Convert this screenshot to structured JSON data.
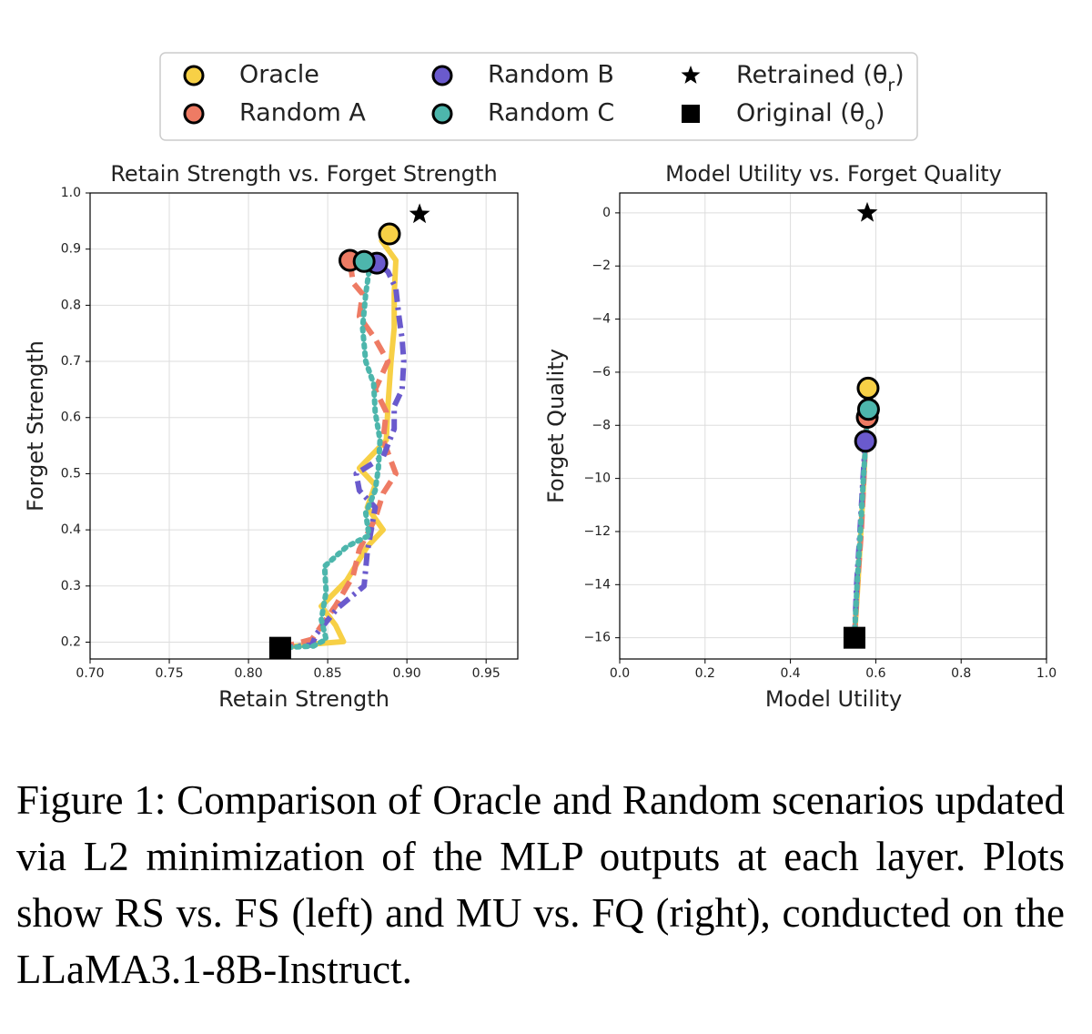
{
  "legend": {
    "entries": [
      {
        "label": "Oracle",
        "marker": "circle",
        "color": "#F7D046"
      },
      {
        "label": "Random A",
        "marker": "circle",
        "color": "#EE7B64"
      },
      {
        "label": "Random B",
        "marker": "circle",
        "color": "#6A5ACD"
      },
      {
        "label": "Random C",
        "marker": "circle",
        "color": "#4DB6AC"
      },
      {
        "label": "Retrained (θr)",
        "marker": "star",
        "color": "#000000"
      },
      {
        "label": "Original (θo)",
        "marker": "square",
        "color": "#000000"
      }
    ]
  },
  "chart_data": [
    {
      "type": "line",
      "title": "Retain Strength vs. Forget Strength",
      "xlabel": "Retain Strength",
      "ylabel": "Forget Strength",
      "xlim": [
        0.7,
        0.97
      ],
      "ylim": [
        0.17,
        1.0
      ],
      "xticks": [
        "0.70",
        "0.75",
        "0.80",
        "0.85",
        "0.90",
        "0.95"
      ],
      "yticks": [
        "0.2",
        "0.3",
        "0.4",
        "0.5",
        "0.6",
        "0.7",
        "0.8",
        "0.9",
        "1.0"
      ],
      "grid": true,
      "series": [
        {
          "name": "Oracle",
          "color": "#F7D046",
          "dash": "solid",
          "points": [
            [
              0.82,
              0.19
            ],
            [
              0.843,
              0.197
            ],
            [
              0.86,
              0.201
            ],
            [
              0.855,
              0.23
            ],
            [
              0.846,
              0.264
            ],
            [
              0.862,
              0.31
            ],
            [
              0.875,
              0.37
            ],
            [
              0.885,
              0.4
            ],
            [
              0.875,
              0.44
            ],
            [
              0.88,
              0.48
            ],
            [
              0.87,
              0.51
            ],
            [
              0.887,
              0.56
            ],
            [
              0.888,
              0.62
            ],
            [
              0.89,
              0.7
            ],
            [
              0.892,
              0.76
            ],
            [
              0.892,
              0.82
            ],
            [
              0.893,
              0.88
            ],
            [
              0.884,
              0.915
            ],
            [
              0.889,
              0.927
            ]
          ]
        },
        {
          "name": "Random A",
          "color": "#EE7B64",
          "dash": "dash",
          "points": [
            [
              0.82,
              0.19
            ],
            [
              0.84,
              0.205
            ],
            [
              0.855,
              0.265
            ],
            [
              0.866,
              0.318
            ],
            [
              0.87,
              0.365
            ],
            [
              0.88,
              0.42
            ],
            [
              0.885,
              0.465
            ],
            [
              0.893,
              0.5
            ],
            [
              0.885,
              0.56
            ],
            [
              0.887,
              0.61
            ],
            [
              0.88,
              0.65
            ],
            [
              0.888,
              0.7
            ],
            [
              0.88,
              0.74
            ],
            [
              0.87,
              0.78
            ],
            [
              0.872,
              0.82
            ],
            [
              0.866,
              0.84
            ],
            [
              0.864,
              0.88
            ]
          ]
        },
        {
          "name": "Random B",
          "color": "#6A5ACD",
          "dash": "dashdot",
          "points": [
            [
              0.82,
              0.19
            ],
            [
              0.84,
              0.195
            ],
            [
              0.843,
              0.215
            ],
            [
              0.856,
              0.26
            ],
            [
              0.873,
              0.3
            ],
            [
              0.875,
              0.36
            ],
            [
              0.88,
              0.44
            ],
            [
              0.87,
              0.47
            ],
            [
              0.868,
              0.5
            ],
            [
              0.885,
              0.53
            ],
            [
              0.892,
              0.58
            ],
            [
              0.892,
              0.62
            ],
            [
              0.897,
              0.65
            ],
            [
              0.898,
              0.7
            ],
            [
              0.897,
              0.74
            ],
            [
              0.895,
              0.78
            ],
            [
              0.893,
              0.83
            ],
            [
              0.888,
              0.86
            ],
            [
              0.881,
              0.875
            ]
          ]
        },
        {
          "name": "Random C",
          "color": "#4DB6AC",
          "dash": "dot",
          "points": [
            [
              0.82,
              0.19
            ],
            [
              0.841,
              0.193
            ],
            [
              0.849,
              0.205
            ],
            [
              0.846,
              0.24
            ],
            [
              0.849,
              0.29
            ],
            [
              0.848,
              0.335
            ],
            [
              0.862,
              0.37
            ],
            [
              0.876,
              0.39
            ],
            [
              0.874,
              0.43
            ],
            [
              0.88,
              0.47
            ],
            [
              0.882,
              0.51
            ],
            [
              0.883,
              0.56
            ],
            [
              0.88,
              0.61
            ],
            [
              0.879,
              0.66
            ],
            [
              0.874,
              0.7
            ],
            [
              0.872,
              0.76
            ],
            [
              0.874,
              0.82
            ],
            [
              0.876,
              0.86
            ],
            [
              0.873,
              0.878
            ]
          ]
        }
      ],
      "endpoints": [
        {
          "name": "Oracle",
          "x": 0.889,
          "y": 0.927,
          "color": "#F7D046"
        },
        {
          "name": "Random A",
          "x": 0.864,
          "y": 0.88,
          "color": "#EE7B64"
        },
        {
          "name": "Random B",
          "x": 0.881,
          "y": 0.875,
          "color": "#6A5ACD"
        },
        {
          "name": "Random C",
          "x": 0.873,
          "y": 0.878,
          "color": "#4DB6AC"
        }
      ],
      "retrained": {
        "x": 0.908,
        "y": 0.962
      },
      "original": {
        "x": 0.82,
        "y": 0.19
      }
    },
    {
      "type": "line",
      "title": "Model Utility vs. Forget Quality",
      "xlabel": "Model Utility",
      "ylabel": "Forget Quality",
      "xlim": [
        0.0,
        1.0
      ],
      "ylim": [
        -16.8,
        0.75
      ],
      "xticks": [
        "0.0",
        "0.2",
        "0.4",
        "0.6",
        "0.8",
        "1.0"
      ],
      "yticks": [
        "0",
        "−2",
        "−4",
        "−6",
        "−8",
        "−10",
        "−12",
        "−14",
        "−16"
      ],
      "grid": true,
      "series": [
        {
          "name": "Oracle",
          "color": "#F7D046",
          "dash": "solid",
          "points": [
            [
              0.55,
              -16.0
            ],
            [
              0.558,
              -14.0
            ],
            [
              0.565,
              -12.0
            ],
            [
              0.572,
              -10.0
            ],
            [
              0.578,
              -8.0
            ],
            [
              0.582,
              -6.6
            ]
          ]
        },
        {
          "name": "Random A",
          "color": "#EE7B64",
          "dash": "dash",
          "points": [
            [
              0.55,
              -16.0
            ],
            [
              0.557,
              -14.0
            ],
            [
              0.566,
              -12.0
            ],
            [
              0.572,
              -10.0
            ],
            [
              0.576,
              -8.6
            ],
            [
              0.58,
              -7.7
            ]
          ]
        },
        {
          "name": "Random B",
          "color": "#6A5ACD",
          "dash": "dashdot",
          "points": [
            [
              0.55,
              -16.0
            ],
            [
              0.555,
              -14.0
            ],
            [
              0.563,
              -12.0
            ],
            [
              0.57,
              -10.0
            ],
            [
              0.574,
              -9.0
            ],
            [
              0.576,
              -8.6
            ]
          ]
        },
        {
          "name": "Random C",
          "color": "#4DB6AC",
          "dash": "dot",
          "points": [
            [
              0.55,
              -16.0
            ],
            [
              0.556,
              -14.0
            ],
            [
              0.564,
              -12.0
            ],
            [
              0.571,
              -10.0
            ],
            [
              0.577,
              -8.5
            ],
            [
              0.583,
              -7.4
            ]
          ]
        }
      ],
      "endpoints": [
        {
          "name": "Random A",
          "x": 0.58,
          "y": -7.7,
          "color": "#EE7B64"
        },
        {
          "name": "Random B",
          "x": 0.576,
          "y": -8.6,
          "color": "#6A5ACD"
        },
        {
          "name": "Oracle",
          "x": 0.582,
          "y": -6.6,
          "color": "#F7D046"
        },
        {
          "name": "Random C",
          "x": 0.583,
          "y": -7.4,
          "color": "#4DB6AC"
        }
      ],
      "retrained": {
        "x": 0.58,
        "y": 0.0
      },
      "original": {
        "x": 0.55,
        "y": -16.0
      }
    }
  ],
  "caption": "Figure 1: Comparison of Oracle and Random scenarios updated via L2 minimization of the MLP outputs at each layer. Plots show RS vs. FS (left) and MU vs. FQ (right), conducted on the LLaMA3.1-8B-Instruct."
}
